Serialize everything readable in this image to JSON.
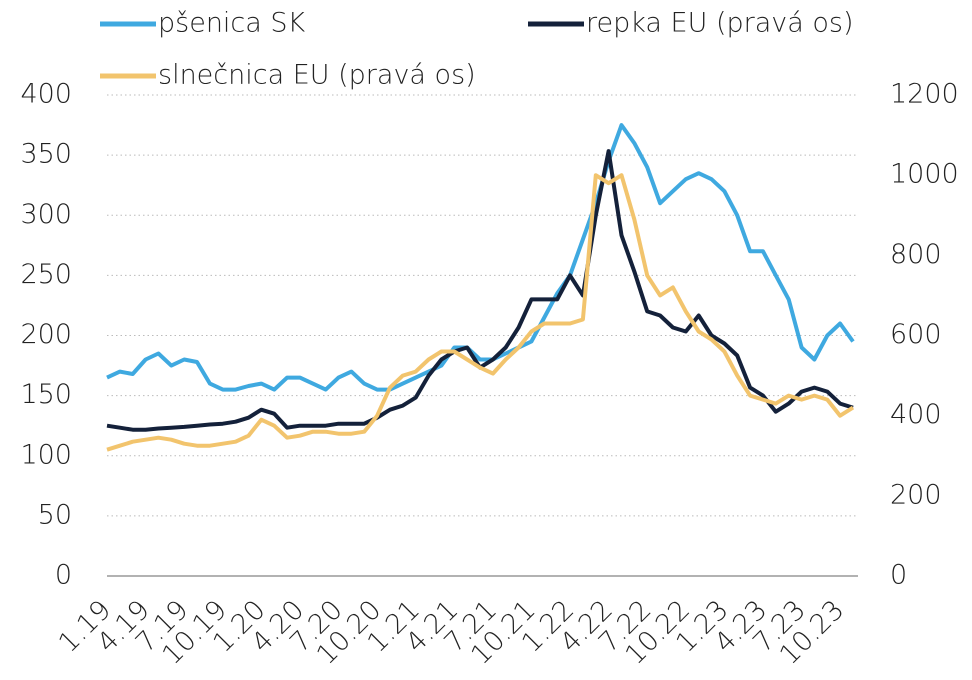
{
  "chart_data": {
    "type": "line",
    "categories": [
      "1.19",
      null,
      null,
      "4.19",
      null,
      null,
      "7.19",
      null,
      null,
      "10.19",
      null,
      null,
      "1.20",
      null,
      null,
      "4.20",
      null,
      null,
      "7.20",
      null,
      null,
      "10.20",
      null,
      null,
      "1.21",
      null,
      null,
      "4.21",
      null,
      null,
      "7.21",
      null,
      null,
      "10.21",
      null,
      null,
      "1.22",
      null,
      null,
      "4.22",
      null,
      null,
      "7.22",
      null,
      null,
      "10.22",
      null,
      null,
      "1.23",
      null,
      null,
      "4.23",
      null,
      null,
      "7.23",
      null,
      null,
      "10.23",
      null
    ],
    "series": [
      {
        "name": "pšenica SK",
        "color": "#3fa9e0",
        "axis": "y",
        "values": [
          165,
          170,
          168,
          180,
          185,
          175,
          180,
          178,
          160,
          155,
          155,
          158,
          160,
          155,
          165,
          165,
          160,
          155,
          165,
          170,
          160,
          155,
          155,
          160,
          165,
          170,
          175,
          190,
          190,
          180,
          180,
          185,
          190,
          195,
          215,
          235,
          250,
          280,
          310,
          345,
          375,
          360,
          340,
          310,
          320,
          330,
          335,
          330,
          320,
          300,
          270,
          270,
          250,
          230,
          190,
          180,
          200,
          210,
          195
        ]
      },
      {
        "name": "repka EU (pravá os)",
        "color": "#14213a",
        "axis": "y2",
        "values": [
          375,
          370,
          365,
          365,
          368,
          370,
          372,
          375,
          378,
          380,
          385,
          395,
          415,
          405,
          370,
          375,
          375,
          375,
          380,
          380,
          380,
          395,
          415,
          425,
          445,
          500,
          540,
          560,
          570,
          520,
          540,
          570,
          620,
          690,
          690,
          690,
          750,
          700,
          900,
          1060,
          850,
          760,
          660,
          650,
          620,
          610,
          650,
          600,
          580,
          550,
          470,
          450,
          410,
          430,
          460,
          470,
          460,
          430,
          420
        ]
      },
      {
        "name": "slnečnica EU (pravá os)",
        "color": "#f2c46d",
        "axis": "y2",
        "values": [
          315,
          325,
          335,
          340,
          345,
          340,
          330,
          325,
          325,
          330,
          335,
          350,
          390,
          375,
          345,
          350,
          360,
          360,
          355,
          355,
          360,
          400,
          470,
          500,
          510,
          540,
          560,
          560,
          540,
          520,
          505,
          540,
          570,
          610,
          630,
          630,
          630,
          640,
          1000,
          980,
          1000,
          890,
          750,
          700,
          720,
          660,
          610,
          590,
          560,
          500,
          450,
          440,
          430,
          450,
          440,
          450,
          440,
          400,
          420
        ]
      }
    ],
    "ylim": [
      0,
      400
    ],
    "yticks": [
      0,
      50,
      100,
      150,
      200,
      250,
      300,
      350,
      400
    ],
    "y2lim": [
      0,
      1200
    ],
    "y2ticks": [
      0,
      200,
      400,
      600,
      800,
      1000,
      1200
    ],
    "grid": true
  }
}
